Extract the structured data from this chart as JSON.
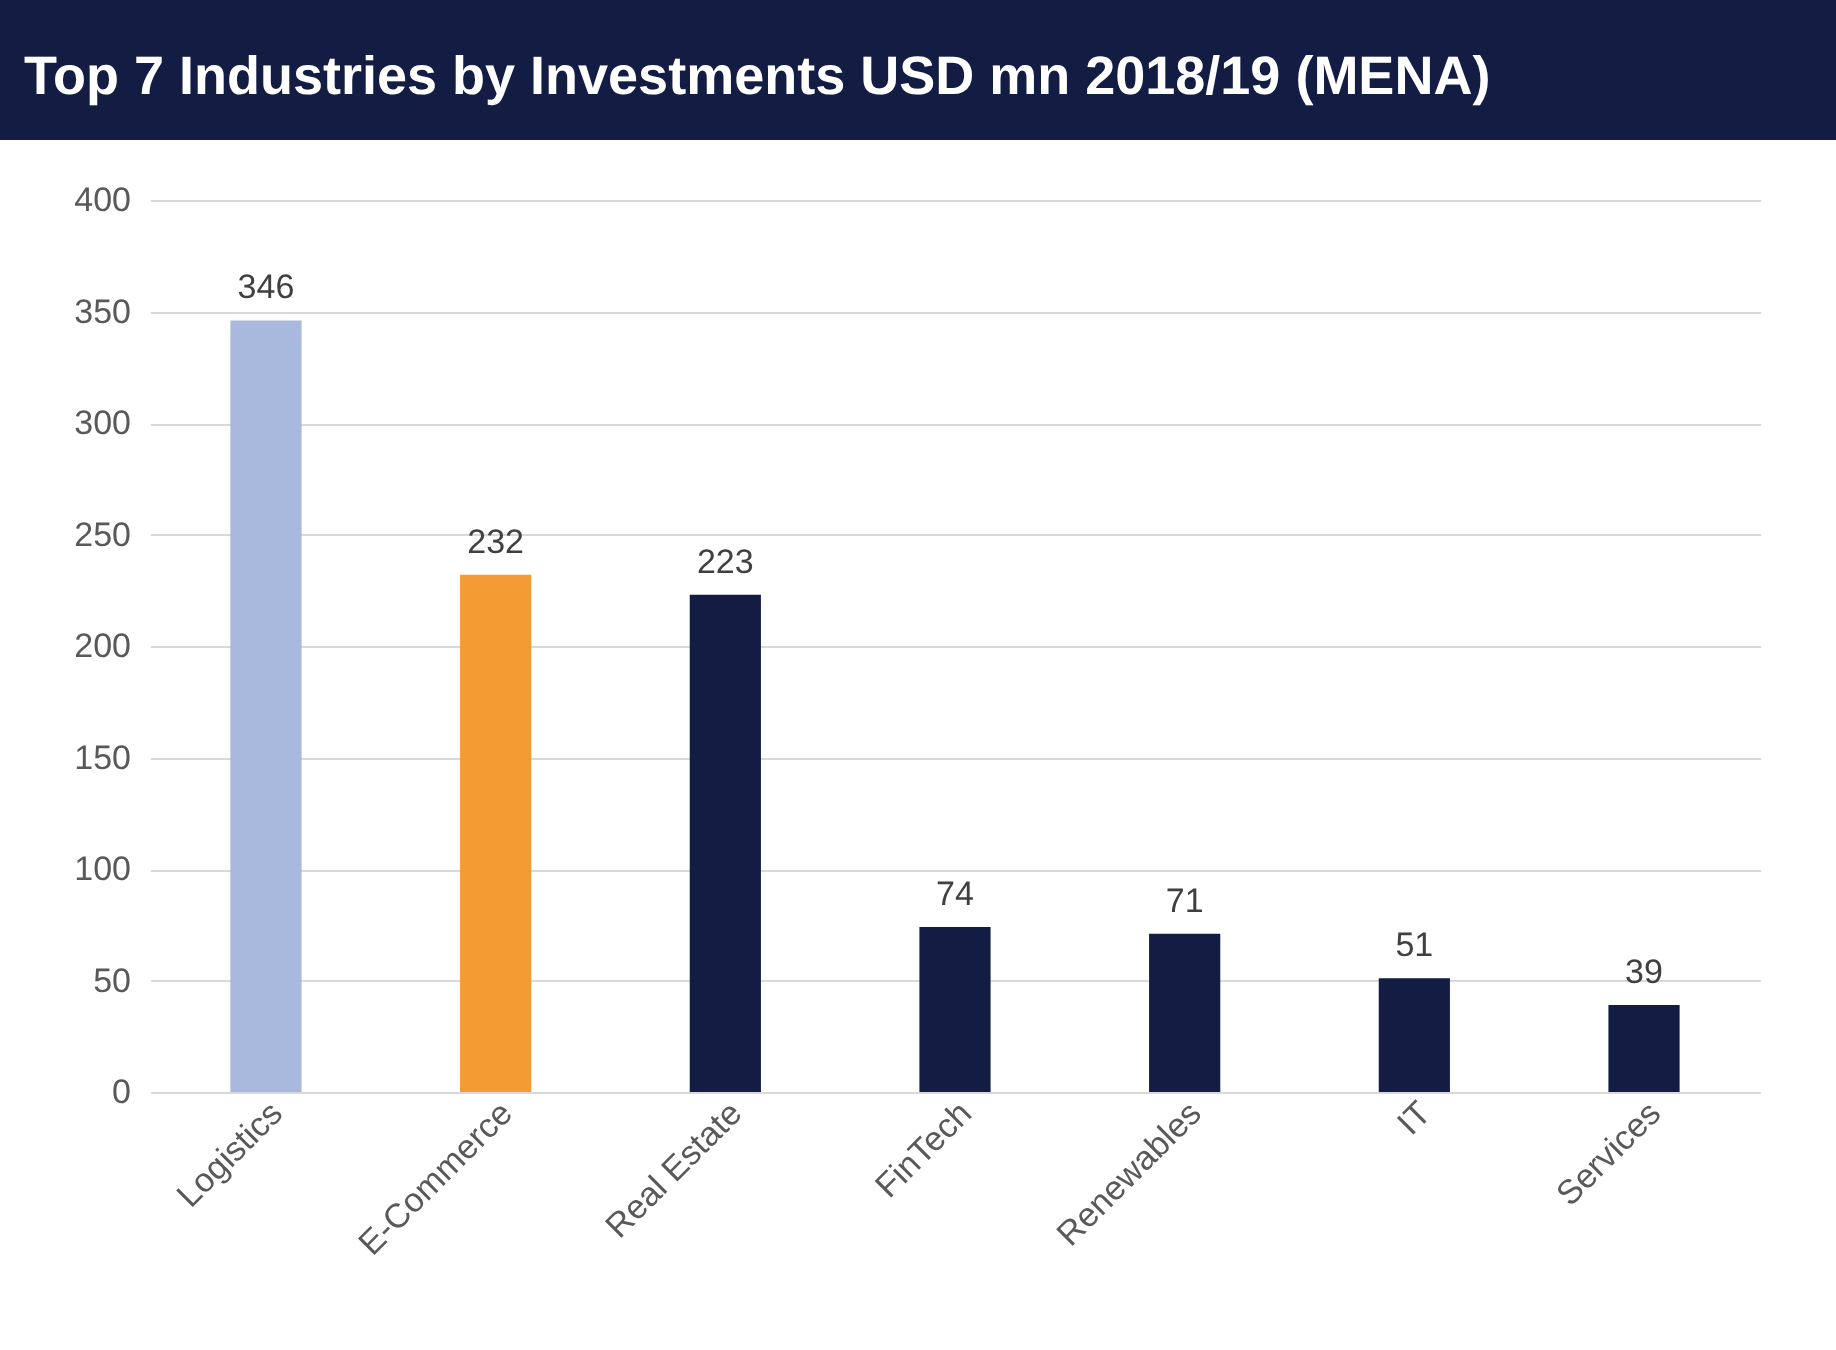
{
  "chart_data": {
    "type": "bar",
    "title": "Top 7 Industries by Investments USD mn 2018/19 (MENA)",
    "categories": [
      "Logistics",
      "E-Commerce",
      "Real Estate",
      "FinTech",
      "Renewables",
      "IT",
      "Services"
    ],
    "values": [
      346,
      232,
      223,
      74,
      71,
      51,
      39
    ],
    "colors": [
      "#a9b9de",
      "#f59b33",
      "#131c42",
      "#131c42",
      "#131c42",
      "#131c42",
      "#131c42"
    ],
    "ylim": [
      0,
      400
    ],
    "yticks": [
      0,
      50,
      100,
      150,
      200,
      250,
      300,
      350,
      400
    ],
    "grid": "y",
    "data_labels": true
  }
}
